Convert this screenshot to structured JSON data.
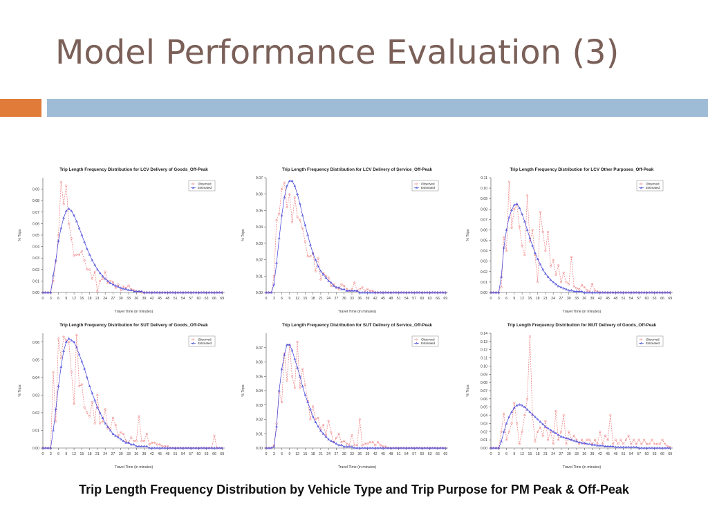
{
  "slide": {
    "title": "Model Performance Evaluation (3)",
    "caption": "Trip Length Frequency Distribution by Vehicle Type and Trip Purpose for PM Peak & Off-Peak",
    "colors": {
      "title": "#7a6058",
      "accent_orange": "#e07b39",
      "accent_blue": "#9fbcd6"
    }
  },
  "chart_common": {
    "xlabel": "Travel Time (in minutes)",
    "ylabel": "% Trips",
    "xticks": [
      0,
      3,
      6,
      9,
      12,
      15,
      18,
      21,
      24,
      27,
      30,
      33,
      36,
      39,
      42,
      45,
      48,
      51,
      54,
      57,
      60,
      63,
      66,
      69
    ],
    "legend": [
      "Observed",
      "Estimated"
    ],
    "legend_position": "top-right",
    "colors": {
      "observed": "#ee7777",
      "estimated": "#3a3ad8"
    }
  },
  "chart_data": [
    {
      "type": "line",
      "title": "Trip Length Frequency Distribution for LCV Delivery of Goods_Off-Peak",
      "xlabel": "Travel Time (in minutes)",
      "ylabel": "% Trips",
      "xlim": [
        0,
        70
      ],
      "ylim": [
        0,
        0.1
      ],
      "yticks": [
        0,
        0.01,
        0.02,
        0.03,
        0.04,
        0.05,
        0.06,
        0.07,
        0.08,
        0.09
      ],
      "series": [
        {
          "name": "Observed",
          "values": [
            0,
            0,
            0,
            0,
            0.01,
            0.027,
            0.05,
            0.096,
            0.077,
            0.093,
            0.06,
            0.047,
            0.032,
            0.033,
            0.033,
            0.036,
            0.028,
            0.02,
            0.02,
            0.012,
            0.018,
            0.001,
            0.01,
            0.012,
            0.018,
            0.008,
            0.01,
            0.009,
            0.004,
            0.007,
            0.002,
            0.005,
            0.004,
            0.006,
            0.003,
            0.002,
            0.001,
            0.001,
            0,
            0,
            0,
            0,
            0,
            0,
            0,
            0,
            0,
            0,
            0,
            0,
            0,
            0,
            0,
            0,
            0,
            0,
            0,
            0,
            0,
            0,
            0,
            0,
            0,
            0,
            0,
            0,
            0,
            0,
            0,
            0
          ]
        },
        {
          "name": "Estimated",
          "values": [
            0,
            0,
            0,
            0,
            0.015,
            0.028,
            0.045,
            0.056,
            0.065,
            0.071,
            0.073,
            0.071,
            0.067,
            0.062,
            0.056,
            0.05,
            0.044,
            0.038,
            0.033,
            0.028,
            0.024,
            0.02,
            0.017,
            0.014,
            0.012,
            0.01,
            0.008,
            0.007,
            0.006,
            0.005,
            0.004,
            0.003,
            0.003,
            0.002,
            0.002,
            0.001,
            0.001,
            0.001,
            0.001,
            0,
            0,
            0,
            0,
            0,
            0,
            0,
            0,
            0,
            0,
            0,
            0,
            0,
            0,
            0,
            0,
            0,
            0,
            0,
            0,
            0,
            0,
            0,
            0,
            0,
            0,
            0,
            0,
            0,
            0,
            0
          ]
        }
      ]
    },
    {
      "type": "line",
      "title": "Trip Length Frequency Distribution for LCV Delivery of Service_Off-Peak",
      "xlabel": "Travel Time (in minutes)",
      "ylabel": "% Trips",
      "xlim": [
        0,
        70
      ],
      "ylim": [
        0,
        0.07
      ],
      "yticks": [
        0,
        0.01,
        0.02,
        0.03,
        0.04,
        0.05,
        0.06,
        0.07
      ],
      "series": [
        {
          "name": "Observed",
          "values": [
            0,
            0,
            0,
            0.01,
            0.044,
            0.048,
            0.063,
            0.067,
            0.052,
            0.06,
            0.043,
            0.058,
            0.046,
            0.044,
            0.039,
            0.031,
            0.022,
            0.022,
            0.024,
            0.013,
            0.021,
            0.008,
            0.012,
            0.01,
            0.009,
            0.004,
            0.005,
            0.003,
            0.002,
            0.005,
            0.004,
            0.002,
            0.001,
            0.002,
            0.006,
            0.001,
            0.002,
            0.003,
            0.001,
            0.002,
            0.001,
            0.001,
            0,
            0,
            0,
            0,
            0,
            0,
            0,
            0,
            0,
            0,
            0,
            0,
            0,
            0,
            0,
            0,
            0,
            0,
            0,
            0,
            0,
            0,
            0,
            0,
            0,
            0,
            0,
            0
          ]
        },
        {
          "name": "Estimated",
          "values": [
            0,
            0,
            0,
            0.005,
            0.018,
            0.033,
            0.047,
            0.058,
            0.065,
            0.068,
            0.068,
            0.065,
            0.06,
            0.054,
            0.047,
            0.041,
            0.035,
            0.029,
            0.024,
            0.02,
            0.016,
            0.013,
            0.011,
            0.009,
            0.007,
            0.006,
            0.004,
            0.003,
            0.003,
            0.002,
            0.002,
            0.001,
            0.001,
            0.001,
            0.001,
            0.001,
            0,
            0,
            0,
            0,
            0,
            0,
            0,
            0,
            0,
            0,
            0,
            0,
            0,
            0,
            0,
            0,
            0,
            0,
            0,
            0,
            0,
            0,
            0,
            0,
            0,
            0,
            0,
            0,
            0,
            0,
            0,
            0,
            0,
            0
          ]
        }
      ]
    },
    {
      "type": "line",
      "title": "Trip Length Frequency Distribution for LCV Other Purposes_Off-Peak",
      "xlabel": "Travel Time (in minutes)",
      "ylabel": "% Trips",
      "xlim": [
        0,
        70
      ],
      "ylim": [
        0,
        0.11
      ],
      "yticks": [
        0,
        0.01,
        0.02,
        0.03,
        0.04,
        0.05,
        0.06,
        0.07,
        0.08,
        0.09,
        0.1,
        0.11
      ],
      "series": [
        {
          "name": "Observed",
          "values": [
            0,
            0,
            0,
            0,
            0.005,
            0.053,
            0.04,
            0.106,
            0.062,
            0.08,
            0.084,
            0.063,
            0.045,
            0.036,
            0.093,
            0.049,
            0.06,
            0.036,
            0.01,
            0.077,
            0.058,
            0.04,
            0.058,
            0.025,
            0.031,
            0.017,
            0.026,
            0.01,
            0.019,
            0.01,
            0.008,
            0.034,
            0.006,
            0.004,
            0.003,
            0.007,
            0.005,
            0.002,
            0.001,
            0.008,
            0.002,
            0.001,
            0,
            0,
            0,
            0,
            0,
            0,
            0,
            0,
            0,
            0,
            0,
            0,
            0,
            0,
            0,
            0,
            0,
            0,
            0,
            0,
            0,
            0,
            0,
            0,
            0,
            0,
            0,
            0
          ]
        },
        {
          "name": "Estimated",
          "values": [
            0,
            0,
            0,
            0,
            0.015,
            0.043,
            0.06,
            0.072,
            0.079,
            0.084,
            0.085,
            0.081,
            0.075,
            0.068,
            0.06,
            0.052,
            0.045,
            0.038,
            0.032,
            0.027,
            0.022,
            0.018,
            0.015,
            0.012,
            0.01,
            0.008,
            0.006,
            0.005,
            0.004,
            0.003,
            0.002,
            0.002,
            0.001,
            0.001,
            0.001,
            0.001,
            0,
            0,
            0,
            0,
            0,
            0,
            0,
            0,
            0,
            0,
            0,
            0,
            0,
            0,
            0,
            0,
            0,
            0,
            0,
            0,
            0,
            0,
            0,
            0,
            0,
            0,
            0,
            0,
            0,
            0,
            0,
            0,
            0,
            0
          ]
        }
      ]
    },
    {
      "type": "line",
      "title": "Trip Length Frequency Distribution for SUT Delivery of Goods_Off-Peak",
      "xlabel": "Travel Time (in minutes)",
      "ylabel": "% Trips",
      "xlim": [
        0,
        70
      ],
      "ylim": [
        0,
        0.065
      ],
      "yticks": [
        0,
        0.01,
        0.02,
        0.03,
        0.04,
        0.05,
        0.06
      ],
      "series": [
        {
          "name": "Observed",
          "values": [
            0,
            0,
            0,
            0,
            0.043,
            0.015,
            0.062,
            0.051,
            0.063,
            0.061,
            0.06,
            0.043,
            0.025,
            0.064,
            0.035,
            0.036,
            0.023,
            0.02,
            0.018,
            0.026,
            0.014,
            0.03,
            0.014,
            0.015,
            0.022,
            0.011,
            0.011,
            0.017,
            0.013,
            0.007,
            0.009,
            0.008,
            0.004,
            0.003,
            0.006,
            0.004,
            0.004,
            0.018,
            0.004,
            0.004,
            0.008,
            0.002,
            0.003,
            0.003,
            0.002,
            0.002,
            0.001,
            0.001,
            0.001,
            0,
            0,
            0,
            0,
            0,
            0,
            0,
            0,
            0,
            0,
            0,
            0,
            0,
            0,
            0,
            0,
            0,
            0.007,
            0,
            0,
            0
          ]
        },
        {
          "name": "Estimated",
          "values": [
            0,
            0,
            0,
            0,
            0.01,
            0.022,
            0.035,
            0.046,
            0.055,
            0.06,
            0.062,
            0.061,
            0.06,
            0.057,
            0.053,
            0.049,
            0.045,
            0.04,
            0.035,
            0.031,
            0.027,
            0.023,
            0.02,
            0.017,
            0.014,
            0.012,
            0.01,
            0.008,
            0.007,
            0.006,
            0.005,
            0.004,
            0.003,
            0.003,
            0.002,
            0.002,
            0.001,
            0.001,
            0.001,
            0.001,
            0.001,
            0,
            0,
            0,
            0,
            0,
            0,
            0,
            0,
            0,
            0,
            0,
            0,
            0,
            0,
            0,
            0,
            0,
            0,
            0,
            0,
            0,
            0,
            0,
            0,
            0,
            0,
            0,
            0,
            0
          ]
        }
      ]
    },
    {
      "type": "line",
      "title": "Trip Length Frequency Distribution for SUT Delivery of Service_Off-Peak",
      "xlabel": "Travel Time (in minutes)",
      "ylabel": "% Trips",
      "xlim": [
        0,
        70
      ],
      "ylim": [
        0,
        0.08
      ],
      "yticks": [
        0,
        0.01,
        0.02,
        0.03,
        0.04,
        0.05,
        0.06,
        0.07
      ],
      "series": [
        {
          "name": "Observed",
          "values": [
            0,
            0,
            0,
            0.002,
            0.017,
            0.039,
            0.032,
            0.066,
            0.047,
            0.072,
            0.05,
            0.042,
            0.074,
            0.042,
            0.055,
            0.044,
            0.033,
            0.02,
            0.029,
            0.02,
            0.021,
            0.013,
            0.016,
            0.009,
            0.019,
            0.011,
            0.004,
            0.007,
            0.01,
            0.004,
            0.005,
            0.003,
            0.002,
            0.009,
            0.002,
            0.002,
            0.02,
            0.002,
            0.003,
            0.003,
            0.004,
            0.004,
            0.002,
            0.004,
            0.002,
            0.001,
            0.001,
            0,
            0,
            0,
            0,
            0,
            0,
            0,
            0,
            0,
            0,
            0,
            0,
            0,
            0,
            0,
            0,
            0,
            0,
            0,
            0,
            0,
            0,
            0
          ]
        },
        {
          "name": "Estimated",
          "values": [
            0,
            0,
            0,
            0.001,
            0.015,
            0.04,
            0.055,
            0.065,
            0.072,
            0.072,
            0.068,
            0.062,
            0.056,
            0.05,
            0.043,
            0.037,
            0.032,
            0.027,
            0.022,
            0.018,
            0.015,
            0.012,
            0.01,
            0.008,
            0.006,
            0.005,
            0.004,
            0.003,
            0.002,
            0.002,
            0.001,
            0.001,
            0.001,
            0.001,
            0,
            0,
            0,
            0,
            0,
            0,
            0,
            0,
            0,
            0,
            0,
            0,
            0,
            0,
            0,
            0,
            0,
            0,
            0,
            0,
            0,
            0,
            0,
            0,
            0,
            0,
            0,
            0,
            0,
            0,
            0,
            0,
            0,
            0,
            0,
            0
          ]
        }
      ]
    },
    {
      "type": "line",
      "title": "Trip Length Frequency Distribution for MUT Delivery of Goods_Off-Peak",
      "xlabel": "Travel Time (in minutes)",
      "ylabel": "% Trips",
      "xlim": [
        0,
        70
      ],
      "ylim": [
        0,
        0.14
      ],
      "yticks": [
        0,
        0.01,
        0.02,
        0.03,
        0.04,
        0.05,
        0.06,
        0.07,
        0.08,
        0.09,
        0.1,
        0.11,
        0.12,
        0.13,
        0.14
      ],
      "series": [
        {
          "name": "Observed",
          "values": [
            0,
            0,
            0,
            0,
            0.02,
            0.042,
            0.01,
            0.02,
            0.03,
            0.055,
            0.03,
            0.005,
            0.02,
            0.04,
            0.06,
            0.136,
            0.04,
            0.008,
            0.02,
            0.025,
            0.015,
            0.033,
            0.01,
            0.02,
            0.005,
            0.045,
            0.01,
            0.02,
            0.04,
            0.005,
            0.02,
            0.01,
            0.015,
            0.01,
            0.005,
            0.01,
            0.005,
            0.01,
            0.01,
            0.005,
            0.01,
            0.005,
            0.02,
            0.005,
            0.015,
            0.01,
            0.04,
            0.005,
            0.01,
            0.005,
            0.01,
            0.005,
            0.01,
            0.015,
            0.005,
            0.01,
            0.005,
            0.01,
            0.005,
            0.01,
            0.005,
            0.005,
            0.01,
            0.005,
            0.005,
            0.005,
            0.01,
            0.005,
            0.002,
            0.001
          ]
        },
        {
          "name": "Estimated",
          "values": [
            0,
            0,
            0,
            0,
            0.008,
            0.02,
            0.03,
            0.038,
            0.044,
            0.049,
            0.052,
            0.053,
            0.052,
            0.05,
            0.047,
            0.044,
            0.041,
            0.038,
            0.035,
            0.032,
            0.029,
            0.026,
            0.024,
            0.022,
            0.02,
            0.018,
            0.016,
            0.014,
            0.013,
            0.012,
            0.011,
            0.01,
            0.009,
            0.008,
            0.007,
            0.006,
            0.006,
            0.005,
            0.005,
            0.004,
            0.004,
            0.003,
            0.003,
            0.003,
            0.002,
            0.002,
            0.002,
            0.002,
            0.001,
            0.001,
            0.001,
            0.001,
            0.001,
            0.001,
            0.001,
            0.001,
            0.001,
            0,
            0,
            0,
            0,
            0,
            0,
            0,
            0,
            0,
            0,
            0,
            0,
            0
          ]
        }
      ]
    }
  ]
}
